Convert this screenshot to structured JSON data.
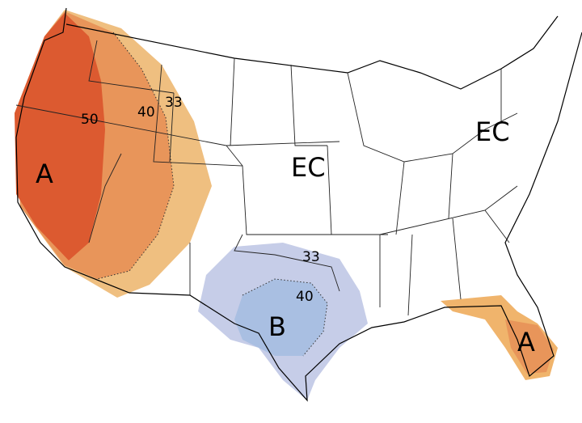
{
  "west": {
    "label": "A",
    "contours": [
      "50",
      "40",
      "33"
    ]
  },
  "central": {
    "label": "EC"
  },
  "east": {
    "label": "EC"
  },
  "south": {
    "label": "B",
    "contours": [
      "33",
      "40"
    ]
  },
  "florida": {
    "label": "A"
  }
}
